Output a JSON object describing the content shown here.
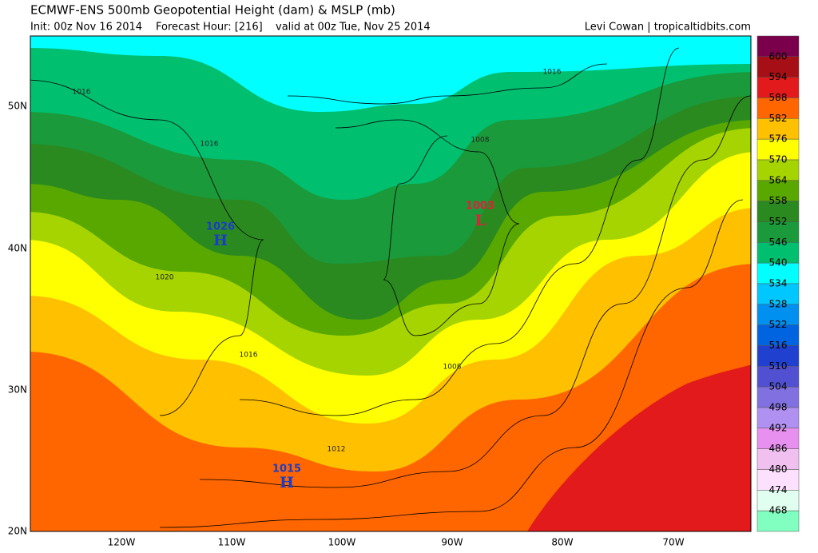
{
  "header": {
    "title": "ECMWF-ENS 500mb Geopotential Height (dam) & MSLP (mb)",
    "init": "Init: 00z Nov 16 2014",
    "forecast": "Forecast Hour: [216]",
    "valid": "valid at 00z Tue, Nov 25 2014",
    "credit": "Levi Cowan | tropicaltidbits.com"
  },
  "map": {
    "lat_labels": [
      "50N",
      "40N",
      "30N",
      "20N"
    ],
    "lon_labels": [
      "120W",
      "110W",
      "100W",
      "90W",
      "80W",
      "70W"
    ],
    "pressure_centers": [
      {
        "value": "1026",
        "symbol": "H"
      },
      {
        "value": "1003",
        "symbol": "L"
      },
      {
        "value": "1015",
        "symbol": "H"
      }
    ],
    "isobar_labels": [
      "1016",
      "1016",
      "1016",
      "1016",
      "1008",
      "1008",
      "1020",
      "1012"
    ]
  },
  "colorbar": {
    "labels": [
      "600",
      "594",
      "588",
      "582",
      "576",
      "570",
      "564",
      "558",
      "552",
      "546",
      "540",
      "534",
      "528",
      "522",
      "516",
      "510",
      "504",
      "498",
      "492",
      "486",
      "480",
      "474",
      "468"
    ],
    "colors": [
      "#7b004c",
      "#a50f15",
      "#e31a1c",
      "#ff6600",
      "#ffc000",
      "#ffff00",
      "#a6d400",
      "#58a800",
      "#2a8a20",
      "#1a9a3a",
      "#00c070",
      "#00ffff",
      "#00c8ff",
      "#0090f0",
      "#0064e0",
      "#2040d0",
      "#5050d0",
      "#8070e0",
      "#b090f0",
      "#e890f0",
      "#f0c0f0",
      "#fde0fd",
      "#e0fff0",
      "#80ffc0"
    ]
  }
}
